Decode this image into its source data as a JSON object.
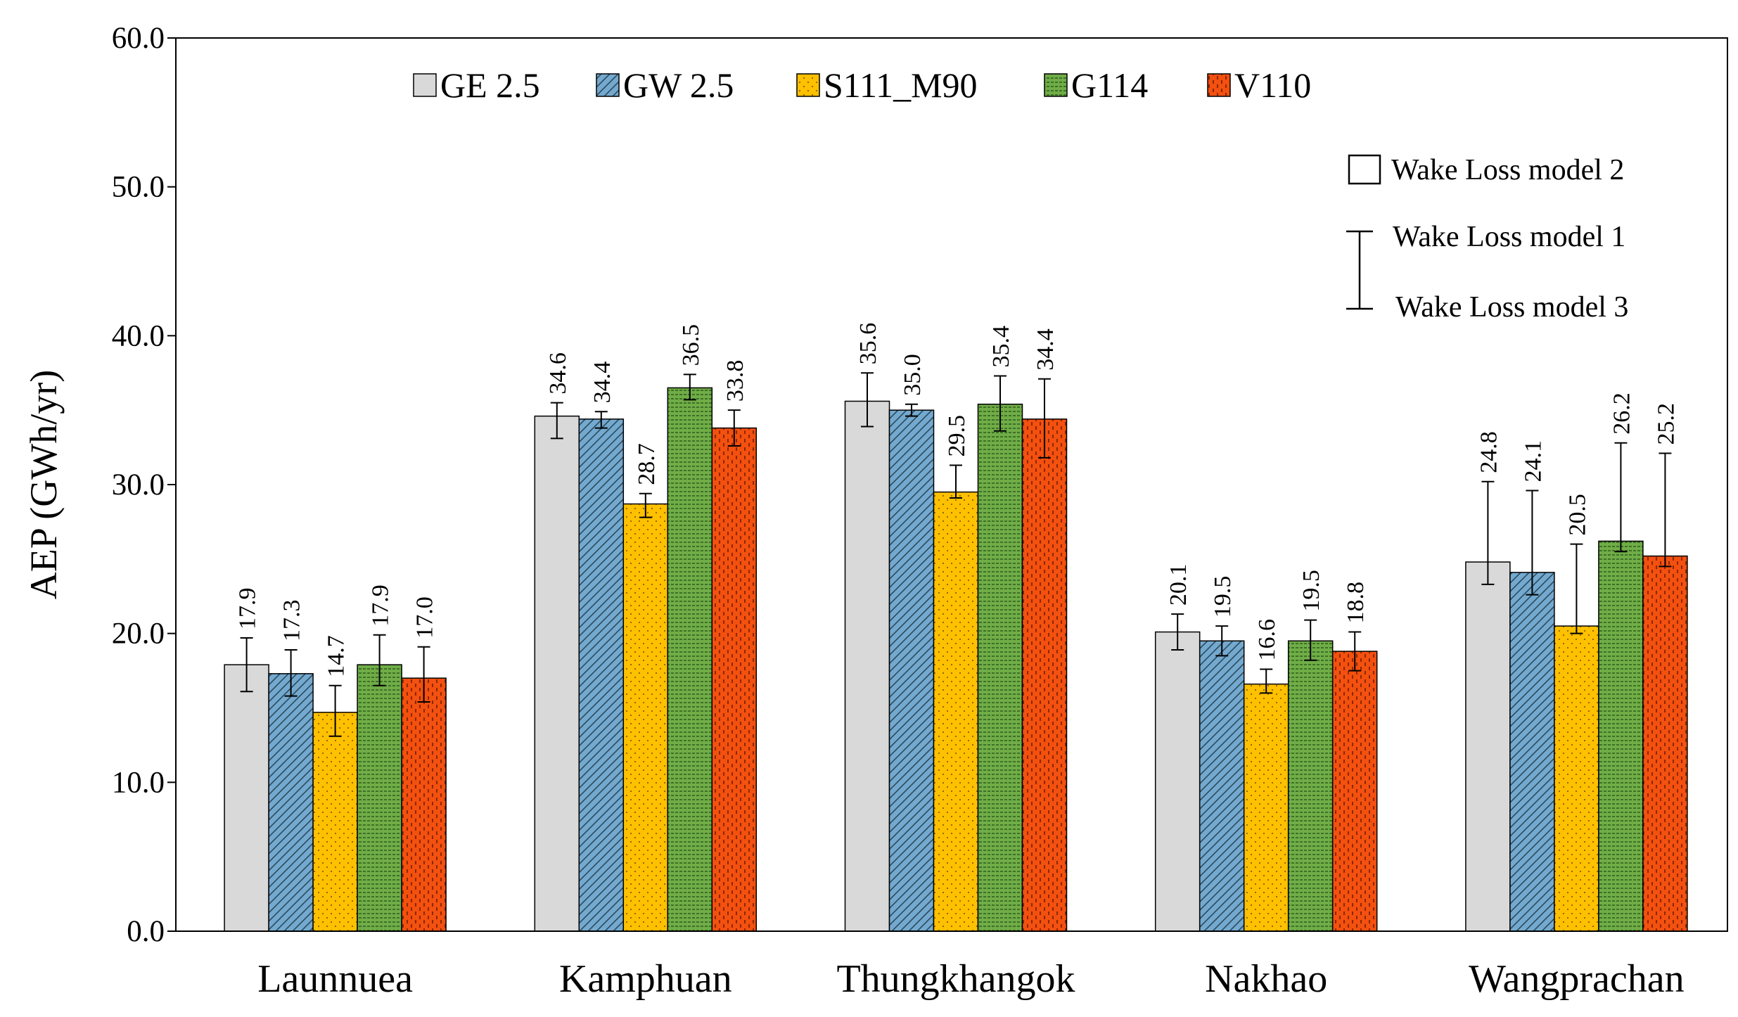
{
  "chart_data": {
    "type": "bar",
    "title": "",
    "xlabel": "",
    "ylabel": "AEP (GWh/yr)",
    "ylim": [
      0,
      60
    ],
    "yticks": [
      "0.0",
      "10.0",
      "20.0",
      "30.0",
      "40.0",
      "50.0",
      "60.0"
    ],
    "grid": false,
    "legend_position": "top",
    "categories": [
      "Launnuea",
      "Kamphuan",
      "Thungkhangok",
      "Nakhao",
      "Wangprachan"
    ],
    "series": [
      {
        "name": "GE 2.5",
        "color": "#d9d9d9",
        "pattern": "solid",
        "values": [
          17.9,
          34.6,
          35.6,
          20.1,
          24.8
        ],
        "labels": [
          "17.9",
          "34.6",
          "35.6",
          "20.1",
          "24.8"
        ],
        "err_high": [
          19.7,
          35.5,
          37.5,
          21.3,
          30.2
        ],
        "err_low": [
          16.1,
          33.1,
          33.9,
          18.9,
          23.3
        ]
      },
      {
        "name": "GW 2.5",
        "color": "#74a9cf",
        "pattern": "diagonal",
        "values": [
          17.3,
          34.4,
          35.0,
          19.5,
          24.1
        ],
        "labels": [
          "17.3",
          "34.4",
          "35.0",
          "19.5",
          "24.1"
        ],
        "err_high": [
          18.9,
          34.9,
          35.4,
          20.5,
          29.6
        ],
        "err_low": [
          15.8,
          33.8,
          34.6,
          18.5,
          22.6
        ]
      },
      {
        "name": "S111_M90",
        "color": "#ffc000",
        "pattern": "dots",
        "values": [
          14.7,
          28.7,
          29.5,
          16.6,
          20.5
        ],
        "labels": [
          "14.7",
          "28.7",
          "29.5",
          "16.6",
          "20.5"
        ],
        "err_high": [
          16.5,
          29.4,
          31.3,
          17.6,
          26.0
        ],
        "err_low": [
          13.1,
          27.8,
          29.1,
          16.0,
          20.0
        ]
      },
      {
        "name": "G114",
        "color": "#70ad47",
        "pattern": "horizontal",
        "values": [
          17.9,
          36.5,
          35.4,
          19.5,
          26.2
        ],
        "labels": [
          "17.9",
          "36.5",
          "35.4",
          "19.5",
          "26.2"
        ],
        "err_high": [
          19.9,
          37.4,
          37.3,
          20.9,
          32.8
        ],
        "err_low": [
          16.5,
          35.7,
          33.6,
          18.2,
          25.5
        ]
      },
      {
        "name": "V110",
        "color": "#f4500f",
        "pattern": "dashes",
        "values": [
          17.0,
          33.8,
          34.4,
          18.8,
          25.2
        ],
        "labels": [
          "17.0",
          "33.8",
          "34.4",
          "18.8",
          "25.2"
        ],
        "err_high": [
          19.1,
          35.0,
          37.1,
          20.1,
          32.1
        ],
        "err_low": [
          15.4,
          32.6,
          31.8,
          17.5,
          24.5
        ]
      }
    ],
    "error_legend": {
      "bar": "Wake Loss model 2",
      "top": "Wake Loss model 1",
      "bottom": "Wake Loss model 3"
    }
  }
}
